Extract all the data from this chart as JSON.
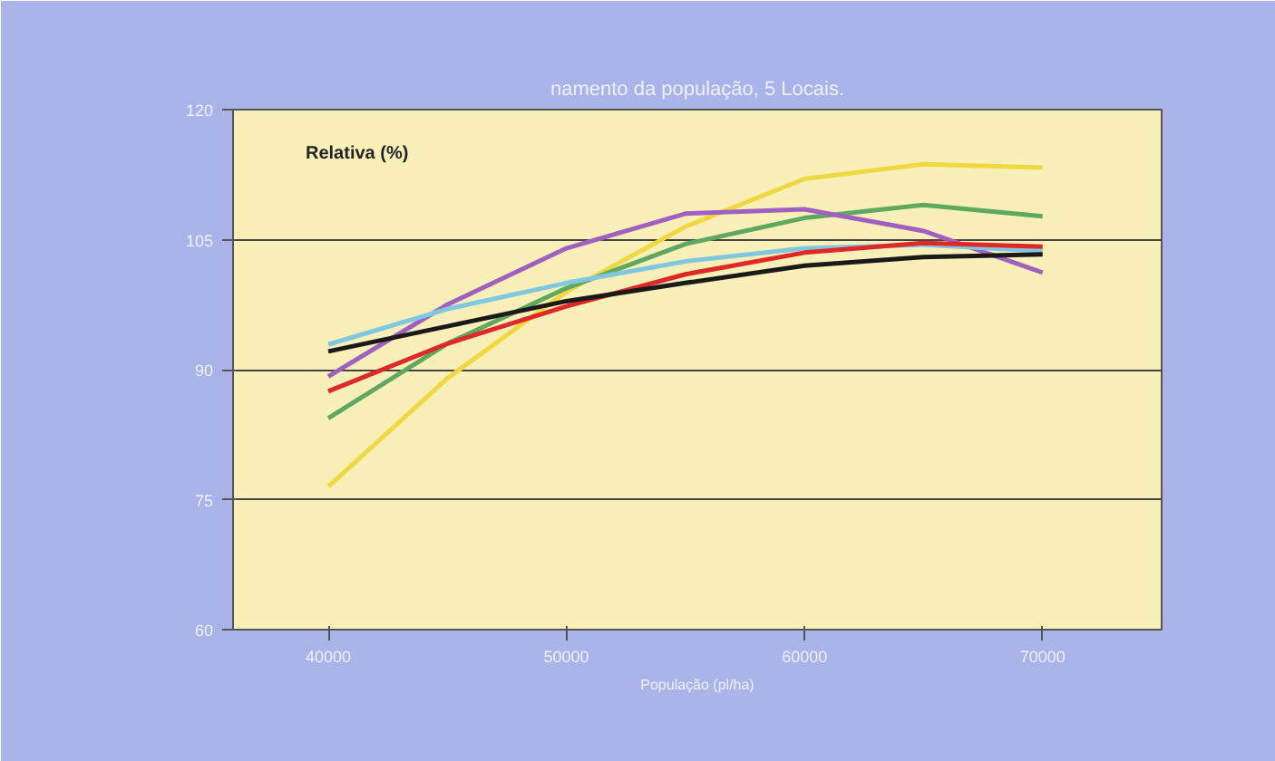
{
  "chart_data": {
    "type": "line",
    "title": "namento da população, 5 Locais.",
    "xlabel": "População (pl/ha)",
    "ylabel": "Relativa (%)",
    "x": [
      40000,
      45000,
      50000,
      55000,
      60000,
      65000,
      70000
    ],
    "xlim": [
      36000,
      75000
    ],
    "xticks": [
      40000,
      50000,
      60000,
      70000
    ],
    "ylim": [
      60,
      120
    ],
    "yticks": [
      60,
      75,
      90,
      105,
      120
    ],
    "grid": "y",
    "marker": "none",
    "line_style": "solid",
    "series": [
      {
        "color": "#f0d840",
        "values": [
          76.5,
          89,
          99,
          106.5,
          112,
          113.7,
          113.3
        ]
      },
      {
        "color": "#5ea860",
        "values": [
          84.4,
          93,
          99.4,
          104.5,
          107.5,
          109,
          107.7
        ]
      },
      {
        "color": "#a060c0",
        "values": [
          89.2,
          97.5,
          104,
          108,
          108.5,
          106,
          101.2
        ]
      },
      {
        "color": "#80c8e0",
        "values": [
          92.9,
          97,
          100,
          102.5,
          104,
          104.4,
          103.7
        ]
      },
      {
        "color": "#e02828",
        "values": [
          87.5,
          93,
          97.3,
          101,
          103.5,
          104.6,
          104.2
        ]
      },
      {
        "color": "#1a1a1a",
        "values": [
          92.1,
          95,
          97.9,
          100,
          102,
          103,
          103.3
        ]
      }
    ]
  }
}
